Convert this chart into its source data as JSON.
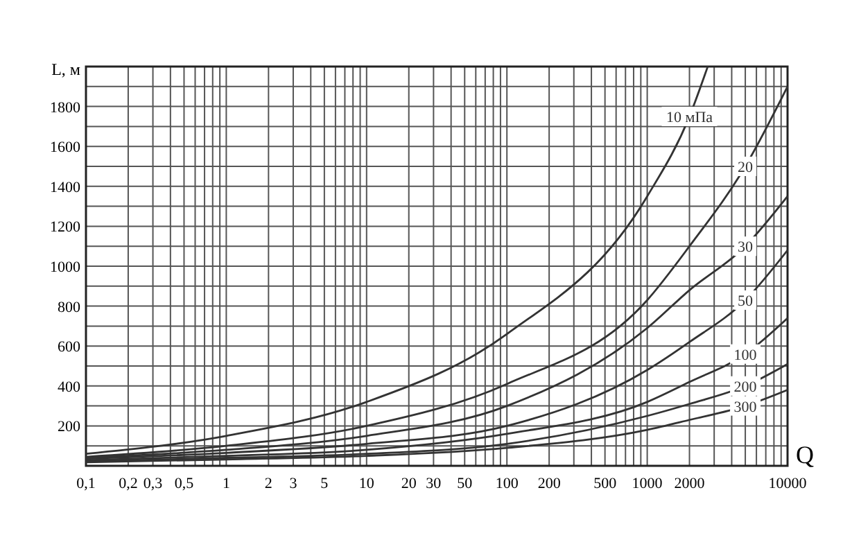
{
  "chart_data": {
    "type": "line",
    "xlabel": "Q",
    "ylabel": "L, м",
    "log": "x",
    "grid": true,
    "marker": "none",
    "line_style": "solid",
    "xlim": [
      0.1,
      10000
    ],
    "ylim": [
      0,
      2000
    ],
    "xticks": [
      {
        "value": 0.1,
        "label": "0,1"
      },
      {
        "value": 0.2,
        "label": "0,2"
      },
      {
        "value": 0.3,
        "label": "0,3"
      },
      {
        "value": 0.4,
        "label": null
      },
      {
        "value": 0.5,
        "label": "0,5"
      },
      {
        "value": 0.6,
        "label": null
      },
      {
        "value": 0.7,
        "label": null
      },
      {
        "value": 0.8,
        "label": null
      },
      {
        "value": 0.9,
        "label": null
      },
      1,
      2,
      3,
      {
        "value": 4,
        "label": null
      },
      5,
      {
        "value": 6,
        "label": null
      },
      {
        "value": 7,
        "label": null
      },
      {
        "value": 8,
        "label": null
      },
      {
        "value": 9,
        "label": null
      },
      10,
      20,
      30,
      {
        "value": 40,
        "label": null
      },
      50,
      {
        "value": 60,
        "label": null
      },
      {
        "value": 70,
        "label": null
      },
      {
        "value": 80,
        "label": null
      },
      {
        "value": 90,
        "label": null
      },
      100,
      200,
      {
        "value": 300,
        "label": null
      },
      {
        "value": 400,
        "label": null
      },
      500,
      {
        "value": 600,
        "label": null
      },
      {
        "value": 700,
        "label": null
      },
      {
        "value": 800,
        "label": null
      },
      {
        "value": 900,
        "label": null
      },
      1000,
      2000,
      {
        "value": 3000,
        "label": null
      },
      {
        "value": 4000,
        "label": null
      },
      {
        "value": 5000,
        "label": null
      },
      {
        "value": 6000,
        "label": null
      },
      {
        "value": 7000,
        "label": null
      },
      {
        "value": 8000,
        "label": null
      },
      {
        "value": 9000,
        "label": null
      },
      10000
    ],
    "yticks": [
      {
        "value": 100,
        "label": null
      },
      200,
      {
        "value": 300,
        "label": null
      },
      400,
      {
        "value": 500,
        "label": null
      },
      600,
      {
        "value": 700,
        "label": null
      },
      800,
      {
        "value": 900,
        "label": null
      },
      1000,
      {
        "value": 1100,
        "label": null
      },
      1200,
      {
        "value": 1300,
        "label": null
      },
      1400,
      {
        "value": 1500,
        "label": null
      },
      1600,
      {
        "value": 1700,
        "label": null
      },
      1800,
      {
        "value": 1900,
        "label": null
      }
    ],
    "series": [
      {
        "name": "10 мПа",
        "color": "#333333",
        "x": [
          0.1,
          1,
          10,
          100,
          1000,
          2000,
          2700
        ],
        "values": [
          60,
          150,
          320,
          660,
          1350,
          1750,
          2000
        ]
      },
      {
        "name": "20",
        "color": "#333333",
        "x": [
          0.1,
          1,
          10,
          100,
          1000,
          2000,
          5000,
          10000
        ],
        "values": [
          45,
          100,
          200,
          410,
          830,
          1100,
          1500,
          1900
        ]
      },
      {
        "name": "30",
        "color": "#333333",
        "x": [
          0.1,
          1,
          10,
          100,
          1000,
          2000,
          5000,
          10000
        ],
        "values": [
          40,
          80,
          150,
          300,
          690,
          880,
          1100,
          1350
        ]
      },
      {
        "name": "50",
        "color": "#333333",
        "x": [
          0.1,
          1,
          10,
          100,
          1000,
          2000,
          5000,
          10000
        ],
        "values": [
          35,
          65,
          110,
          200,
          480,
          620,
          830,
          1080
        ]
      },
      {
        "name": "100",
        "color": "#333333",
        "x": [
          0.1,
          1,
          10,
          100,
          1000,
          2000,
          5000,
          10000
        ],
        "values": [
          28,
          50,
          80,
          160,
          320,
          420,
          560,
          740
        ]
      },
      {
        "name": "200",
        "color": "#333333",
        "x": [
          0.1,
          1,
          10,
          100,
          1000,
          2000,
          5000,
          10000
        ],
        "values": [
          22,
          40,
          60,
          110,
          250,
          310,
          400,
          510
        ]
      },
      {
        "name": "300",
        "color": "#333333",
        "x": [
          0.1,
          1,
          10,
          100,
          1000,
          2000,
          5000,
          10000
        ],
        "values": [
          18,
          32,
          50,
          90,
          180,
          230,
          300,
          380
        ]
      }
    ]
  }
}
